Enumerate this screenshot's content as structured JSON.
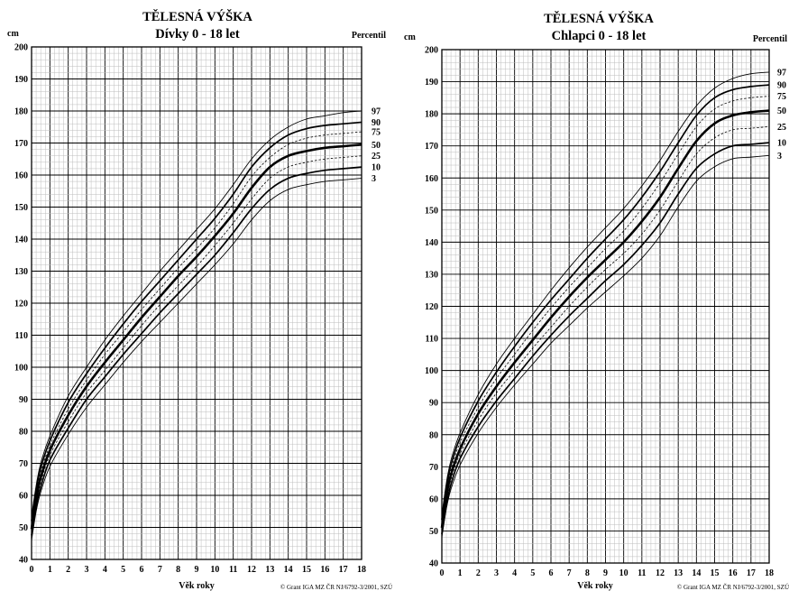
{
  "chart_data": [
    {
      "type": "line",
      "title": "TĚLESNÁ VÝŠKA",
      "subtitle": "Dívky 0 - 18 let",
      "ylabel": "cm",
      "xlabel": "Věk roky",
      "legend_title": "Percentil",
      "credit": "© Grant IGA MZ ČR NJ/6792-3/2001, SZÚ",
      "xlim": [
        0,
        18
      ],
      "ylim": [
        40,
        200
      ],
      "x_ticks": [
        "0",
        "1",
        "2",
        "3",
        "4",
        "5",
        "6",
        "7",
        "8",
        "9",
        "10",
        "11",
        "12",
        "13",
        "14",
        "15",
        "16",
        "17",
        "18"
      ],
      "y_ticks": [
        "40",
        "50",
        "60",
        "70",
        "80",
        "90",
        "100",
        "110",
        "120",
        "130",
        "140",
        "150",
        "160",
        "170",
        "180",
        "190",
        "200"
      ],
      "grid": true,
      "legend_position": "right",
      "x": [
        0,
        0.25,
        0.5,
        1,
        2,
        3,
        4,
        5,
        6,
        7,
        8,
        9,
        10,
        11,
        12,
        13,
        14,
        15,
        16,
        17,
        18
      ],
      "series": [
        {
          "name": "97",
          "values": [
            53.5,
            63,
            70,
            78.5,
            91,
            100,
            108.5,
            116,
            123,
            130,
            136.5,
            143,
            149.5,
            157,
            165,
            171,
            175,
            177.5,
            178.5,
            179.5,
            180
          ]
        },
        {
          "name": "90",
          "values": [
            52,
            61.5,
            68.5,
            77,
            89,
            98,
            106,
            113.5,
            120.5,
            127,
            133.5,
            140,
            146.5,
            154,
            162.5,
            168.5,
            172.5,
            174.5,
            175.5,
            176,
            176.5
          ]
        },
        {
          "name": "75",
          "values": [
            51,
            60.5,
            67,
            75.5,
            87,
            96,
            104,
            111,
            118,
            124.5,
            131,
            137,
            143.5,
            151,
            159.5,
            165.5,
            169.5,
            171.5,
            172.5,
            173,
            173.5
          ]
        },
        {
          "name": "50",
          "values": [
            49.5,
            59,
            65.5,
            74,
            85,
            94,
            101.5,
            108.5,
            115.5,
            122,
            128.5,
            134.5,
            141,
            148,
            156,
            162.5,
            166,
            167.5,
            168.5,
            169,
            169.5
          ]
        },
        {
          "name": "25",
          "values": [
            48.5,
            57.5,
            64,
            72.5,
            83,
            92,
            99,
            106,
            113,
            119.5,
            125.5,
            131.5,
            138,
            145,
            152.5,
            159,
            162.5,
            164,
            165,
            165.5,
            166
          ]
        },
        {
          "name": "10",
          "values": [
            47.5,
            56.5,
            62.5,
            71,
            81,
            90,
            97,
            104,
            110.5,
            117,
            123,
            129,
            135,
            142,
            149.5,
            155.5,
            159,
            160.5,
            161.5,
            162,
            162.5
          ]
        },
        {
          "name": "3",
          "values": [
            46,
            55,
            61,
            69,
            79,
            87.5,
            94.5,
            101.5,
            108,
            114,
            120,
            126,
            132,
            138.5,
            146,
            152,
            155.5,
            157,
            158,
            158.5,
            159
          ]
        }
      ]
    },
    {
      "type": "line",
      "title": "TĚLESNÁ VÝŠKA",
      "subtitle": "Chlapci 0 - 18 let",
      "ylabel": "cm",
      "xlabel": "Věk roky",
      "legend_title": "Percentil",
      "credit": "© Grant IGA MZ ČR NJ/6792-3/2001, SZÚ",
      "xlim": [
        0,
        18
      ],
      "ylim": [
        40,
        200
      ],
      "x_ticks": [
        "0",
        "1",
        "2",
        "3",
        "4",
        "5",
        "6",
        "7",
        "8",
        "9",
        "10",
        "11",
        "12",
        "13",
        "14",
        "15",
        "16",
        "17",
        "18"
      ],
      "y_ticks": [
        "40",
        "50",
        "60",
        "70",
        "80",
        "90",
        "100",
        "110",
        "120",
        "130",
        "140",
        "150",
        "160",
        "170",
        "180",
        "190",
        "200"
      ],
      "grid": true,
      "legend_position": "right",
      "x": [
        0,
        0.25,
        0.5,
        1,
        2,
        3,
        4,
        5,
        6,
        7,
        8,
        9,
        10,
        11,
        12,
        13,
        14,
        15,
        16,
        17,
        18
      ],
      "series": [
        {
          "name": "97",
          "values": [
            55,
            65,
            72,
            80.5,
            92.5,
            102,
            110,
            117.5,
            125,
            132,
            138.5,
            144.5,
            150.5,
            157.5,
            165.5,
            174.5,
            182.5,
            188,
            191,
            192.5,
            193
          ]
        },
        {
          "name": "90",
          "values": [
            53.5,
            63.5,
            70.5,
            79,
            90.5,
            99.5,
            107.5,
            115,
            122,
            128.5,
            135,
            141,
            147,
            154,
            162,
            171,
            179.5,
            185,
            187.5,
            188.5,
            189
          ]
        },
        {
          "name": "75",
          "values": [
            52.5,
            62.5,
            69,
            77.5,
            88.5,
            97.5,
            105,
            112.5,
            119.5,
            126,
            132,
            138,
            143.5,
            150.5,
            158.5,
            167.5,
            176,
            181.5,
            184,
            185,
            185.5
          ]
        },
        {
          "name": "50",
          "values": [
            51,
            61,
            67.5,
            75.5,
            86.5,
            95,
            102.5,
            109.5,
            116.5,
            123,
            129,
            134.5,
            140,
            146.5,
            154,
            163,
            171.5,
            177,
            179.5,
            180.5,
            181
          ]
        },
        {
          "name": "25",
          "values": [
            50,
            59.5,
            66,
            74,
            84.5,
            93,
            100,
            107,
            113.5,
            120,
            126,
            131.5,
            136.5,
            142.5,
            150,
            159,
            167.5,
            172.5,
            175,
            175.5,
            176
          ]
        },
        {
          "name": "10",
          "values": [
            49,
            58,
            64.5,
            72.5,
            82.5,
            90.5,
            97.5,
            104.5,
            111,
            117,
            122.5,
            128,
            133,
            139,
            146,
            155,
            163,
            167.5,
            170,
            170.5,
            171
          ]
        },
        {
          "name": "3",
          "values": [
            48,
            57,
            63,
            70.5,
            80.5,
            88.5,
            95.5,
            102,
            108.5,
            114,
            119.5,
            124.5,
            129.5,
            135,
            142,
            151,
            159,
            163.5,
            166,
            166.5,
            167
          ]
        }
      ]
    }
  ]
}
